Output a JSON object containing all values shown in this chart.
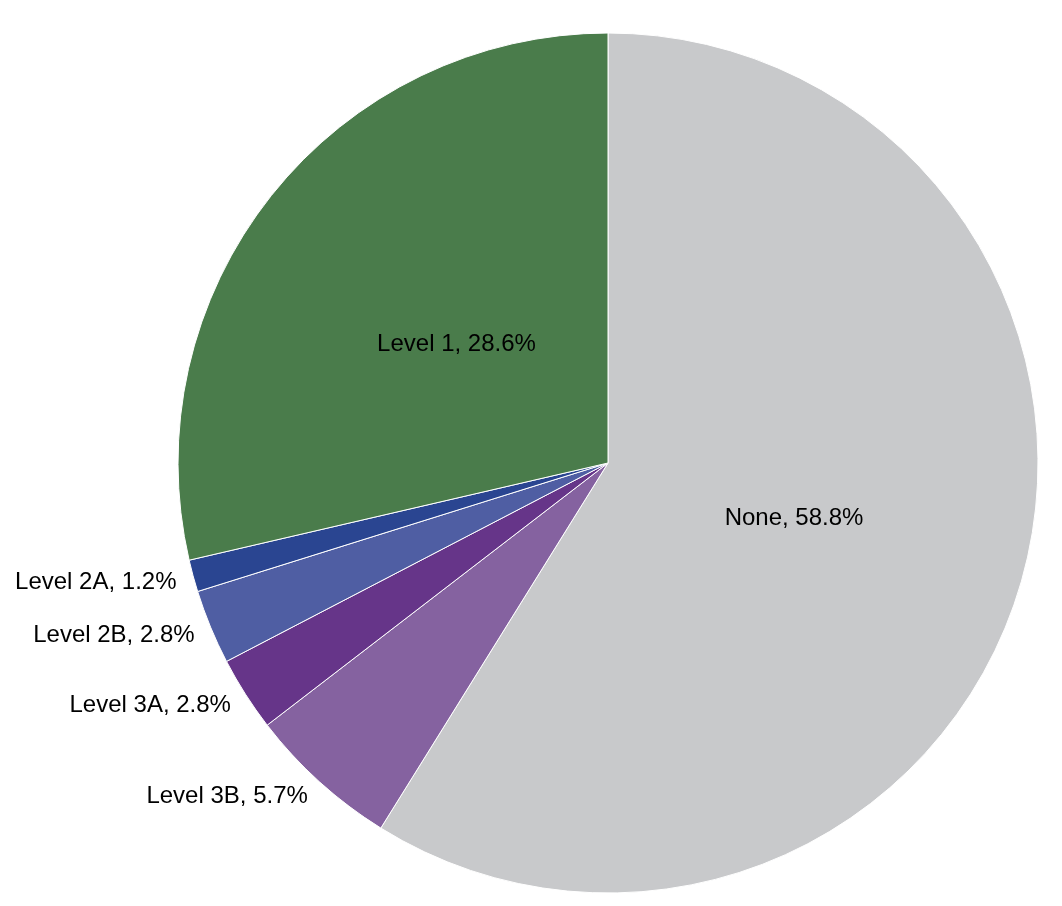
{
  "chart_data": {
    "type": "pie",
    "categories": [
      "None",
      "Level 3B",
      "Level 3A",
      "Level 2B",
      "Level 2A",
      "Level 1"
    ],
    "values": [
      58.8,
      5.7,
      2.8,
      2.8,
      1.2,
      28.6
    ],
    "colors": [
      "#c8c9cb",
      "#8562a0",
      "#663589",
      "#4f5ea3",
      "#2a4591",
      "#4a7c4b"
    ],
    "value_labels": [
      "58.8%",
      "5.7%",
      "2.8%",
      "2.8%",
      "1.2%",
      "28.6%"
    ]
  }
}
